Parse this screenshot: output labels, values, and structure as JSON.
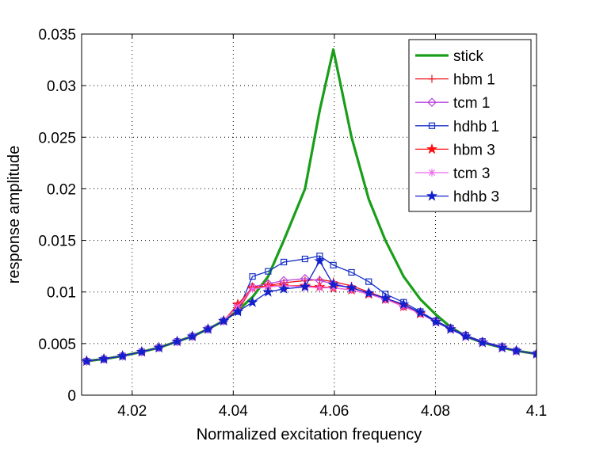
{
  "chart_data": {
    "type": "line",
    "title": "",
    "xlabel": "Normalized excitation frequency",
    "ylabel": "response amplitude",
    "xlim": [
      4.01,
      4.1
    ],
    "ylim": [
      0,
      0.035
    ],
    "xticks": [
      4.02,
      4.04,
      4.06,
      4.08,
      4.1
    ],
    "xtick_labels": [
      "4.02",
      "4.04",
      "4.06",
      "4.08",
      "4.1"
    ],
    "yticks": [
      0,
      0.005,
      0.01,
      0.015,
      0.02,
      0.025,
      0.03,
      0.035
    ],
    "ytick_labels": [
      "0",
      "0.005",
      "0.01",
      "0.015",
      "0.02",
      "0.025",
      "0.03",
      "0.035"
    ],
    "grid": true,
    "legend_position": "top-right",
    "x": [
      4.011,
      4.0144,
      4.0181,
      4.0219,
      4.0253,
      4.0289,
      4.0319,
      4.035,
      4.0381,
      4.0409,
      4.0438,
      4.0469,
      4.05,
      4.0542,
      4.0571,
      4.0598,
      4.0634,
      4.0668,
      4.0701,
      4.0737,
      4.077,
      4.0801,
      4.083,
      4.086,
      4.0893,
      4.0932,
      4.096,
      4.1
    ],
    "series": [
      {
        "name": "stick",
        "color": "#1a9e1a",
        "marker": "none",
        "values": [
          0.0033,
          0.0035,
          0.0038,
          0.0042,
          0.0046,
          0.0052,
          0.0057,
          0.0064,
          0.0072,
          0.0082,
          0.0095,
          0.0115,
          0.015,
          0.02,
          0.0276,
          0.0335,
          0.025,
          0.019,
          0.015,
          0.0115,
          0.0093,
          0.0078,
          0.0066,
          0.0057,
          0.0051,
          0.0046,
          0.0043,
          0.004
        ]
      },
      {
        "name": "hbm 1",
        "color": "#e8141e",
        "marker": "plus",
        "values": [
          0.0033,
          0.0035,
          0.0038,
          0.0042,
          0.0046,
          0.0052,
          0.0057,
          0.0064,
          0.0072,
          0.0082,
          0.0104,
          0.0106,
          0.0109,
          0.0111,
          0.0112,
          0.011,
          0.0106,
          0.01,
          0.0094,
          0.0087,
          0.008,
          0.0072,
          0.0065,
          0.0058,
          0.0052,
          0.0047,
          0.0043,
          0.004
        ]
      },
      {
        "name": "tcm 1",
        "color": "#bb44dd",
        "marker": "diamond",
        "values": [
          0.0033,
          0.0035,
          0.0038,
          0.0042,
          0.0046,
          0.0052,
          0.0057,
          0.0064,
          0.0072,
          0.0087,
          0.0105,
          0.0108,
          0.0111,
          0.0113,
          0.0111,
          0.0108,
          0.0104,
          0.0099,
          0.0093,
          0.0086,
          0.008,
          0.0072,
          0.0065,
          0.0058,
          0.0052,
          0.0047,
          0.0043,
          0.004
        ]
      },
      {
        "name": "hdhb 1",
        "color": "#1631c6",
        "marker": "square",
        "values": [
          0.0033,
          0.0035,
          0.0038,
          0.0042,
          0.0046,
          0.0052,
          0.0057,
          0.0064,
          0.0072,
          0.0081,
          0.0115,
          0.012,
          0.0129,
          0.0132,
          0.0135,
          0.0126,
          0.0119,
          0.011,
          0.0098,
          0.009,
          0.0081,
          0.0072,
          0.0065,
          0.0058,
          0.0052,
          0.0047,
          0.0043,
          0.004
        ]
      },
      {
        "name": "hbm 3",
        "color": "#ff1010",
        "marker": "star",
        "values": [
          0.0033,
          0.0035,
          0.0038,
          0.0042,
          0.0046,
          0.0052,
          0.0057,
          0.0064,
          0.0072,
          0.0088,
          0.0104,
          0.0106,
          0.0106,
          0.0106,
          0.0105,
          0.0104,
          0.0102,
          0.0098,
          0.0093,
          0.0086,
          0.0079,
          0.0071,
          0.0064,
          0.0057,
          0.0051,
          0.0046,
          0.0043,
          0.004
        ]
      },
      {
        "name": "tcm 3",
        "color": "#ee66ee",
        "marker": "asterisk",
        "values": [
          0.0033,
          0.0035,
          0.0038,
          0.0042,
          0.0046,
          0.0052,
          0.0057,
          0.0064,
          0.0072,
          0.0086,
          0.0103,
          0.0105,
          0.0106,
          0.0105,
          0.0104,
          0.0104,
          0.0102,
          0.0098,
          0.0093,
          0.0086,
          0.0079,
          0.0071,
          0.0064,
          0.0057,
          0.0051,
          0.0046,
          0.0043,
          0.004
        ]
      },
      {
        "name": "hdhb 3",
        "color": "#1020cc",
        "marker": "star",
        "values": [
          0.0033,
          0.0035,
          0.0038,
          0.0042,
          0.0046,
          0.0052,
          0.0057,
          0.0064,
          0.0072,
          0.0081,
          0.009,
          0.01,
          0.0103,
          0.0105,
          0.013,
          0.0107,
          0.0104,
          0.0099,
          0.0094,
          0.0088,
          0.008,
          0.0071,
          0.0064,
          0.0057,
          0.0051,
          0.0046,
          0.0043,
          0.004
        ]
      }
    ]
  }
}
